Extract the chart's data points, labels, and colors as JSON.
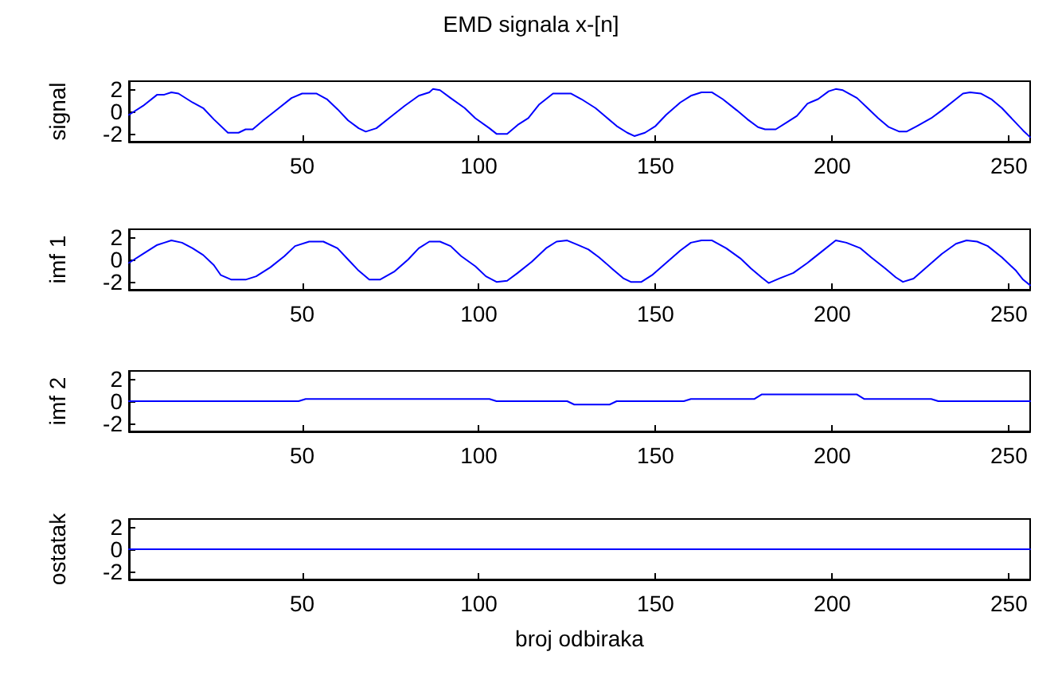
{
  "chart_data": [
    {
      "type": "line",
      "title": "EMD signala x-[n]",
      "ylabel": "signal",
      "xlim": [
        1,
        256
      ],
      "xticks": [
        50,
        100,
        150,
        200,
        250
      ],
      "ylim": [
        -2.7,
        2.7
      ],
      "yticks": [
        -2,
        0,
        2
      ],
      "marker": "none",
      "line_style": "solid",
      "x": [
        1,
        5,
        9,
        11,
        13,
        15,
        19,
        22,
        25,
        29,
        32,
        34,
        36,
        39,
        43,
        47,
        50,
        54,
        57,
        60,
        63,
        66,
        68,
        71,
        75,
        79,
        83,
        86,
        87,
        89,
        92,
        96,
        99,
        103,
        105,
        108,
        111,
        114,
        117,
        121,
        126,
        129,
        133,
        136,
        139,
        142,
        144,
        147,
        150,
        153,
        157,
        160,
        163,
        166,
        169,
        173,
        176,
        179,
        181,
        184,
        187,
        190,
        193,
        196,
        199,
        201,
        203,
        207,
        210,
        213,
        216,
        219,
        221,
        224,
        228,
        231,
        235,
        237,
        239,
        242,
        245,
        248,
        251,
        254,
        256
      ],
      "series": [
        {
          "color": "#0000ff",
          "values": [
            -0.3,
            0.5,
            1.5,
            1.5,
            1.7,
            1.6,
            0.8,
            0.3,
            -0.7,
            -1.9,
            -1.9,
            -1.6,
            -1.6,
            -0.8,
            0.2,
            1.2,
            1.6,
            1.6,
            1.1,
            0.2,
            -0.8,
            -1.5,
            -1.8,
            -1.5,
            -0.5,
            0.5,
            1.4,
            1.7,
            2.0,
            1.9,
            1.2,
            0.3,
            -0.6,
            -1.5,
            -2.0,
            -2.0,
            -1.2,
            -0.6,
            0.6,
            1.6,
            1.6,
            1.1,
            0.3,
            -0.5,
            -1.3,
            -1.9,
            -2.2,
            -1.9,
            -1.3,
            -0.3,
            0.8,
            1.4,
            1.7,
            1.7,
            1.1,
            0.1,
            -0.7,
            -1.4,
            -1.6,
            -1.6,
            -1.0,
            -0.4,
            0.7,
            1.1,
            1.8,
            2.0,
            1.9,
            1.2,
            0.3,
            -0.6,
            -1.4,
            -1.8,
            -1.8,
            -1.3,
            -0.6,
            0.1,
            1.1,
            1.6,
            1.7,
            1.6,
            1.1,
            0.3,
            -0.7,
            -1.7,
            -2.3
          ]
        }
      ]
    },
    {
      "type": "line",
      "ylabel": "imf 1",
      "xlim": [
        1,
        256
      ],
      "xticks": [
        50,
        100,
        150,
        200,
        250
      ],
      "ylim": [
        -2.7,
        2.7
      ],
      "yticks": [
        -2,
        0,
        2
      ],
      "marker": "none",
      "line_style": "solid",
      "x": [
        1,
        5,
        9,
        11,
        13,
        16,
        19,
        22,
        25,
        27,
        30,
        34,
        37,
        41,
        45,
        48,
        52,
        56,
        60,
        63,
        66,
        69,
        72,
        76,
        80,
        83,
        86,
        89,
        92,
        95,
        99,
        102,
        105,
        108,
        111,
        115,
        119,
        122,
        125,
        128,
        131,
        134,
        138,
        141,
        143,
        146,
        149,
        153,
        157,
        160,
        163,
        166,
        170,
        174,
        177,
        180,
        182,
        185,
        189,
        193,
        197,
        201,
        204,
        208,
        211,
        215,
        218,
        220,
        223,
        227,
        231,
        235,
        238,
        241,
        244,
        248,
        252,
        254,
        256
      ],
      "series": [
        {
          "color": "#0000ff",
          "values": [
            -0.3,
            0.5,
            1.3,
            1.5,
            1.7,
            1.5,
            1.0,
            0.4,
            -0.5,
            -1.4,
            -1.8,
            -1.8,
            -1.5,
            -0.7,
            0.3,
            1.2,
            1.6,
            1.6,
            1.0,
            0.0,
            -1.0,
            -1.8,
            -1.8,
            -1.1,
            0.0,
            1.0,
            1.6,
            1.6,
            1.2,
            0.3,
            -0.6,
            -1.5,
            -2.0,
            -1.9,
            -1.2,
            -0.2,
            1.0,
            1.6,
            1.7,
            1.3,
            0.9,
            0.2,
            -0.9,
            -1.7,
            -2.0,
            -2.0,
            -1.4,
            -0.3,
            0.8,
            1.5,
            1.7,
            1.7,
            1.0,
            0.1,
            -0.8,
            -1.6,
            -2.1,
            -1.7,
            -1.2,
            -0.3,
            0.7,
            1.7,
            1.5,
            1.0,
            0.2,
            -0.8,
            -1.6,
            -2.0,
            -1.7,
            -0.6,
            0.5,
            1.4,
            1.7,
            1.6,
            1.2,
            0.2,
            -1.0,
            -1.8,
            -2.3
          ]
        }
      ]
    },
    {
      "type": "line",
      "ylabel": "imf 2",
      "xlim": [
        1,
        256
      ],
      "xticks": [
        50,
        100,
        150,
        200,
        250
      ],
      "ylim": [
        -2.7,
        2.7
      ],
      "yticks": [
        -2,
        0,
        2
      ],
      "marker": "none",
      "line_style": "solid",
      "x": [
        1,
        49,
        51,
        103,
        105,
        125,
        127,
        137,
        139,
        158,
        160,
        178,
        180,
        207,
        209,
        228,
        230,
        256
      ],
      "series": [
        {
          "color": "#0000ff",
          "values": [
            0,
            0,
            0.2,
            0.2,
            0,
            0,
            -0.3,
            -0.3,
            0,
            0,
            0.2,
            0.2,
            0.6,
            0.6,
            0.2,
            0.2,
            0,
            0
          ]
        }
      ]
    },
    {
      "type": "line",
      "ylabel": "ostatak",
      "xlabel": "broj odbiraka",
      "xlim": [
        1,
        256
      ],
      "xticks": [
        50,
        100,
        150,
        200,
        250
      ],
      "ylim": [
        -2.7,
        2.7
      ],
      "yticks": [
        -2,
        0,
        2
      ],
      "marker": "none",
      "line_style": "solid",
      "x": [
        1,
        256
      ],
      "series": [
        {
          "color": "#0000ff",
          "values": [
            0,
            0
          ]
        }
      ]
    }
  ]
}
